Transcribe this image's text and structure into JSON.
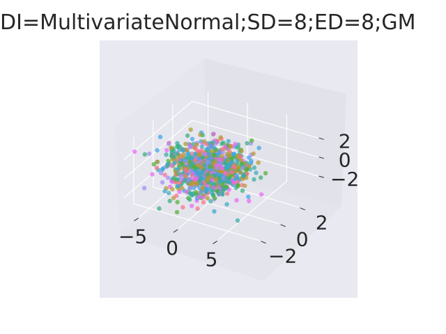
{
  "chart_data": {
    "type": "scatter",
    "projection": "3d",
    "title": "DI=MultivariateNormal;SD=8;ED=8;GM",
    "xlabel": "",
    "ylabel": "",
    "zlabel": "",
    "x_ticks": [
      -5,
      0,
      5
    ],
    "y_ticks": [
      -2,
      0,
      2
    ],
    "z_ticks": [
      -2,
      0,
      2
    ],
    "xlim": [
      -7,
      9
    ],
    "ylim": [
      -3,
      4
    ],
    "zlim": [
      -3.5,
      3.5
    ],
    "grid": true,
    "legend": "none",
    "point_count": 1000,
    "x_distribution": {
      "mean": 0,
      "sd": 2.2
    },
    "y_distribution": {
      "mean": 0,
      "sd": 1
    },
    "z_distribution": {
      "mean": 0,
      "sd": 1
    },
    "series_colors": [
      "#f77189",
      "#bb9832",
      "#50b131",
      "#36ada4",
      "#3ba3ec",
      "#e866f4",
      "#a48cf4",
      "#ae9d31",
      "#33b07a",
      "#38a9c5"
    ]
  },
  "tick_labels": {
    "x": [
      "−5",
      "0",
      "5"
    ],
    "y": [
      "−2",
      "0",
      "2"
    ],
    "z": [
      "−2",
      "0",
      "2"
    ]
  }
}
